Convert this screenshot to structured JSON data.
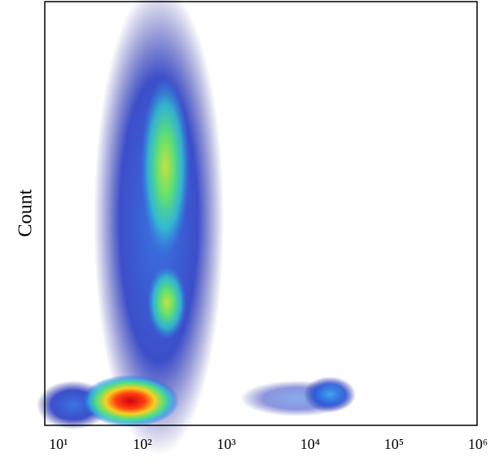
{
  "chart_data": {
    "type": "density",
    "ylabel": "Count",
    "xscale": "log",
    "xlim": [
      7.5,
      1070000
    ],
    "xticks": [
      {
        "value": 10,
        "label": "10¹"
      },
      {
        "value": 100,
        "label": "10²"
      },
      {
        "value": 1000,
        "label": "10³"
      },
      {
        "value": 10000,
        "label": "10⁴"
      },
      {
        "value": 100000,
        "label": "10⁵"
      },
      {
        "value": 1000000,
        "label": "10⁶"
      }
    ]
  }
}
